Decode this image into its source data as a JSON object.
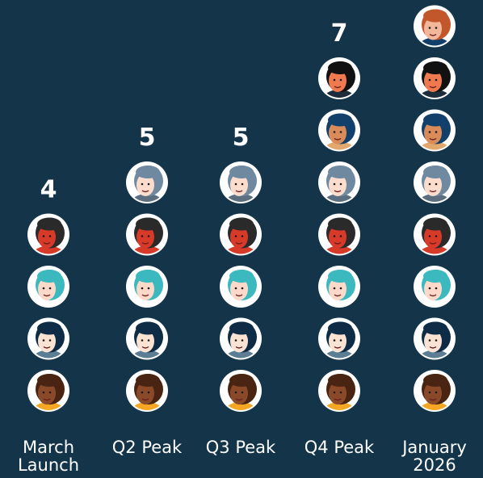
{
  "chart_data": {
    "type": "pictogram",
    "categories": [
      "March Launch",
      "Q2 Peak",
      "Q3 Peak",
      "Q4 Peak",
      "January 2026"
    ],
    "values": [
      4,
      5,
      5,
      7,
      8
    ],
    "value_labels": [
      "4",
      "5",
      "5",
      "7",
      null
    ]
  }
}
